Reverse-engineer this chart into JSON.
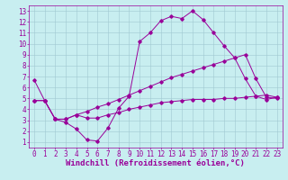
{
  "xlabel": "Windchill (Refroidissement éolien,°C)",
  "bg_color": "#c8eef0",
  "line_color": "#990099",
  "xlim": [
    -0.5,
    23.5
  ],
  "ylim": [
    0.5,
    13.5
  ],
  "xticks": [
    0,
    1,
    2,
    3,
    4,
    5,
    6,
    7,
    8,
    9,
    10,
    11,
    12,
    13,
    14,
    15,
    16,
    17,
    18,
    19,
    20,
    21,
    22,
    23
  ],
  "yticks": [
    1,
    2,
    3,
    4,
    5,
    6,
    7,
    8,
    9,
    10,
    11,
    12,
    13
  ],
  "line1_x": [
    0,
    1,
    2,
    3,
    4,
    5,
    6,
    7,
    8,
    9,
    10,
    11,
    12,
    13,
    14,
    15,
    16,
    17,
    18,
    19,
    20,
    21,
    22,
    23
  ],
  "line1_y": [
    6.7,
    4.8,
    3.1,
    2.8,
    2.2,
    1.2,
    1.1,
    2.3,
    4.1,
    5.2,
    10.2,
    11.0,
    12.1,
    12.5,
    12.3,
    13.0,
    12.2,
    11.0,
    9.8,
    8.7,
    6.8,
    5.2,
    4.9,
    5.1
  ],
  "line2_x": [
    0,
    1,
    2,
    3,
    4,
    5,
    6,
    7,
    8,
    9,
    10,
    11,
    12,
    13,
    14,
    15,
    16,
    17,
    18,
    19,
    20,
    21,
    22,
    23
  ],
  "line2_y": [
    4.8,
    4.8,
    3.1,
    3.1,
    3.5,
    3.8,
    4.2,
    4.5,
    4.9,
    5.3,
    5.7,
    6.1,
    6.5,
    6.9,
    7.2,
    7.5,
    7.8,
    8.1,
    8.4,
    8.7,
    9.0,
    6.8,
    5.1,
    5.0
  ],
  "line3_x": [
    0,
    1,
    2,
    3,
    4,
    5,
    6,
    7,
    8,
    9,
    10,
    11,
    12,
    13,
    14,
    15,
    16,
    17,
    18,
    19,
    20,
    21,
    22,
    23
  ],
  "line3_y": [
    4.8,
    4.8,
    3.1,
    3.1,
    3.5,
    3.2,
    3.2,
    3.5,
    3.7,
    4.0,
    4.2,
    4.4,
    4.6,
    4.7,
    4.8,
    4.9,
    4.9,
    4.9,
    5.0,
    5.0,
    5.1,
    5.2,
    5.3,
    5.1
  ],
  "grid_color": "#a0c8d0",
  "tick_fontsize": 5.5,
  "xlabel_fontsize": 6.5,
  "marker": "D",
  "markersize": 1.8,
  "linewidth": 0.7
}
